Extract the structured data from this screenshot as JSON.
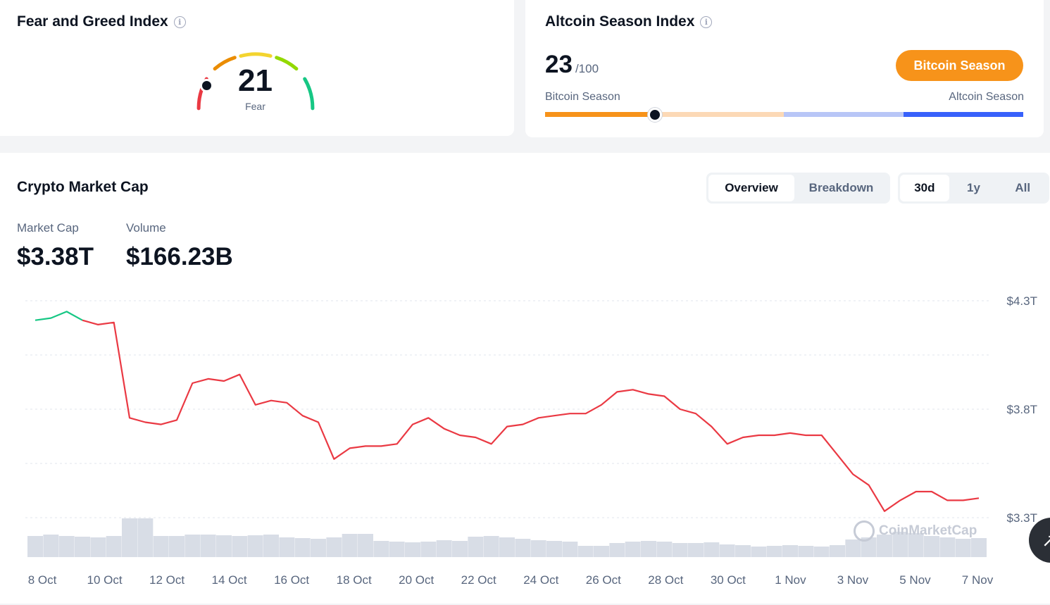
{
  "fear_greed": {
    "title": "Fear and Greed Index",
    "value": "21",
    "label": "Fear",
    "level": 21
  },
  "altcoin_season": {
    "title": "Altcoin Season Index",
    "value": "23",
    "max": "/100",
    "badge": "Bitcoin Season",
    "left_label": "Bitcoin Season",
    "right_label": "Altcoin Season",
    "level": 23,
    "colors": {
      "btc": "#f7931a",
      "btc_light": "#fcd9b6",
      "alt_light": "#b8c6f7",
      "alt": "#3861fb"
    }
  },
  "market_cap": {
    "title": "Crypto Market Cap",
    "tabs": [
      "Overview",
      "Breakdown"
    ],
    "active_tab": "Overview",
    "ranges": [
      "30d",
      "1y",
      "All"
    ],
    "active_range": "30d",
    "stats": {
      "market_cap_label": "Market Cap",
      "market_cap_value": "$3.38T",
      "volume_label": "Volume",
      "volume_value": "$166.23B"
    },
    "watermark": "CoinMarketCap"
  },
  "chart_data": {
    "type": "line",
    "series": [
      {
        "x": [
          "2025-10-08",
          "2025-10-08T12",
          "2025-10-09",
          "2025-10-09T12",
          "2025-10-10",
          "2025-10-10T12",
          "2025-10-11",
          "2025-10-11T12",
          "2025-10-12",
          "2025-10-12T12",
          "2025-10-13",
          "2025-10-13T12",
          "2025-10-14",
          "2025-10-14T12",
          "2025-10-15",
          "2025-10-15T12",
          "2025-10-16",
          "2025-10-16T12",
          "2025-10-17",
          "2025-10-17T12",
          "2025-10-18",
          "2025-10-18T12",
          "2025-10-19",
          "2025-10-19T12",
          "2025-10-20",
          "2025-10-20T12",
          "2025-10-21",
          "2025-10-21T12",
          "2025-10-22",
          "2025-10-22T12",
          "2025-10-23",
          "2025-10-23T12",
          "2025-10-24",
          "2025-10-24T12",
          "2025-10-25",
          "2025-10-25T12",
          "2025-10-26",
          "2025-10-26T12",
          "2025-10-27",
          "2025-10-27T12",
          "2025-10-28",
          "2025-10-28T12",
          "2025-10-29",
          "2025-10-29T12",
          "2025-10-30",
          "2025-10-30T12",
          "2025-10-31",
          "2025-10-31T12",
          "2025-11-01",
          "2025-11-01T12",
          "2025-11-02",
          "2025-11-02T12",
          "2025-11-03",
          "2025-11-03T12",
          "2025-11-04",
          "2025-11-04T12",
          "2025-11-05",
          "2025-11-05T12",
          "2025-11-06",
          "2025-11-06T12",
          "2025-11-07"
        ],
        "y": [
          4.21,
          4.22,
          4.25,
          4.21,
          4.19,
          4.2,
          3.76,
          3.74,
          3.73,
          3.75,
          3.92,
          3.94,
          3.93,
          3.96,
          3.82,
          3.84,
          3.83,
          3.77,
          3.74,
          3.57,
          3.62,
          3.63,
          3.63,
          3.64,
          3.73,
          3.76,
          3.71,
          3.68,
          3.67,
          3.64,
          3.72,
          3.73,
          3.76,
          3.77,
          3.78,
          3.78,
          3.82,
          3.88,
          3.89,
          3.87,
          3.86,
          3.8,
          3.78,
          3.72,
          3.64,
          3.67,
          3.68,
          3.68,
          3.69,
          3.68,
          3.68,
          3.59,
          3.5,
          3.45,
          3.33,
          3.38,
          3.42,
          3.42,
          3.38,
          3.38,
          3.39
        ],
        "volume": [
          0.3,
          0.32,
          0.3,
          0.29,
          0.28,
          0.3,
          0.55,
          0.55,
          0.3,
          0.3,
          0.32,
          0.32,
          0.31,
          0.3,
          0.31,
          0.32,
          0.28,
          0.27,
          0.26,
          0.28,
          0.33,
          0.33,
          0.23,
          0.22,
          0.21,
          0.22,
          0.24,
          0.23,
          0.29,
          0.3,
          0.28,
          0.26,
          0.24,
          0.23,
          0.22,
          0.16,
          0.16,
          0.2,
          0.22,
          0.23,
          0.22,
          0.2,
          0.2,
          0.21,
          0.18,
          0.17,
          0.15,
          0.16,
          0.17,
          0.16,
          0.15,
          0.17,
          0.25,
          0.28,
          0.32,
          0.36,
          0.34,
          0.3,
          0.28,
          0.26,
          0.27
        ]
      }
    ],
    "x_ticks": [
      "8 Oct",
      "10 Oct",
      "12 Oct",
      "14 Oct",
      "16 Oct",
      "18 Oct",
      "20 Oct",
      "22 Oct",
      "24 Oct",
      "26 Oct",
      "28 Oct",
      "30 Oct",
      "1 Nov",
      "3 Nov",
      "5 Nov",
      "7 Nov"
    ],
    "y_ticks": [
      "$4.3T",
      "$3.8T",
      "$3.3T"
    ],
    "y_tick_values": [
      4.3,
      3.8,
      3.3
    ],
    "ylim": [
      3.3,
      4.3
    ],
    "grid": true,
    "colors": {
      "up": "#16c784",
      "down": "#ea3943",
      "volume": "#d8dde6",
      "grid": "#e2e6ec"
    }
  }
}
